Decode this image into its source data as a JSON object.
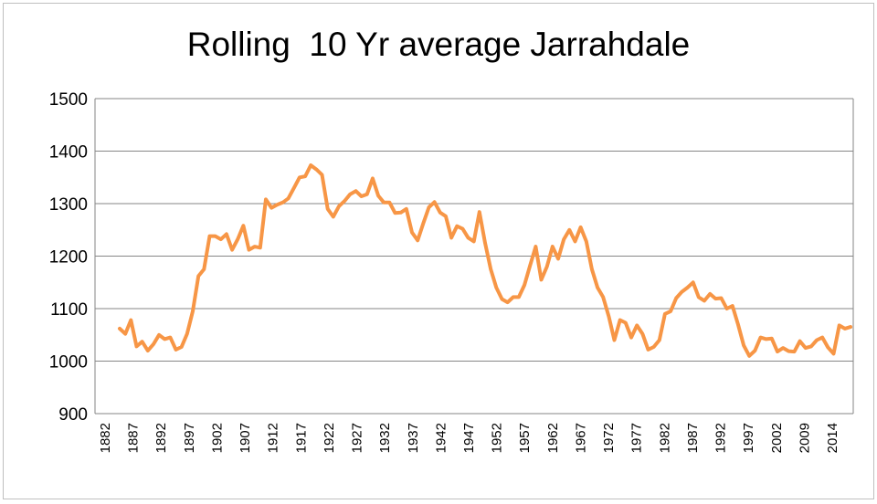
{
  "chart_data": {
    "type": "line",
    "title": "Rolling  10 Yr average Jarrahdale",
    "xlabel": "",
    "ylabel": "",
    "ylim": [
      900,
      1500
    ],
    "y_ticks": [
      "1500",
      "1400",
      "1300",
      "1200",
      "1100",
      "1000",
      "900"
    ],
    "x_tick_labels": [
      "1882",
      "1887",
      "1892",
      "1897",
      "1902",
      "1907",
      "1912",
      "1917",
      "1922",
      "1927",
      "1932",
      "1937",
      "1942",
      "1947",
      "1952",
      "1957",
      "1962",
      "1967",
      "1972",
      "1977",
      "1982",
      "1987",
      "1992",
      "1997",
      "2002",
      "2009",
      "2014"
    ],
    "grid": true,
    "line_color": "#F79646",
    "series": [
      {
        "values": [
          1062,
          1052,
          1078,
          1028,
          1037,
          1020,
          1032,
          1050,
          1042,
          1045,
          1022,
          1027,
          1052,
          1095,
          1162,
          1175,
          1238,
          1238,
          1232,
          1242,
          1212,
          1232,
          1258,
          1212,
          1218,
          1216,
          1308,
          1292,
          1298,
          1302,
          1310,
          1330,
          1350,
          1352,
          1373,
          1365,
          1355,
          1290,
          1275,
          1295,
          1305,
          1318,
          1324,
          1314,
          1318,
          1348,
          1315,
          1302,
          1302,
          1282,
          1283,
          1290,
          1245,
          1230,
          1262,
          1293,
          1303,
          1283,
          1276,
          1235,
          1257,
          1252,
          1235,
          1228,
          1284,
          1225,
          1175,
          1140,
          1118,
          1112,
          1122,
          1122,
          1145,
          1182,
          1218,
          1155,
          1180,
          1218,
          1195,
          1232,
          1250,
          1228,
          1255,
          1228,
          1175,
          1140,
          1122,
          1085,
          1040,
          1078,
          1073,
          1045,
          1068,
          1052,
          1022,
          1027,
          1040,
          1090,
          1095,
          1120,
          1132,
          1140,
          1150,
          1122,
          1115,
          1128,
          1119,
          1120,
          1100,
          1105,
          1070,
          1030,
          1010,
          1020,
          1045,
          1042,
          1043,
          1018,
          1025,
          1019,
          1018,
          1038,
          1025,
          1028,
          1040,
          1045,
          1026,
          1014,
          1068,
          1062,
          1065
        ]
      }
    ]
  }
}
